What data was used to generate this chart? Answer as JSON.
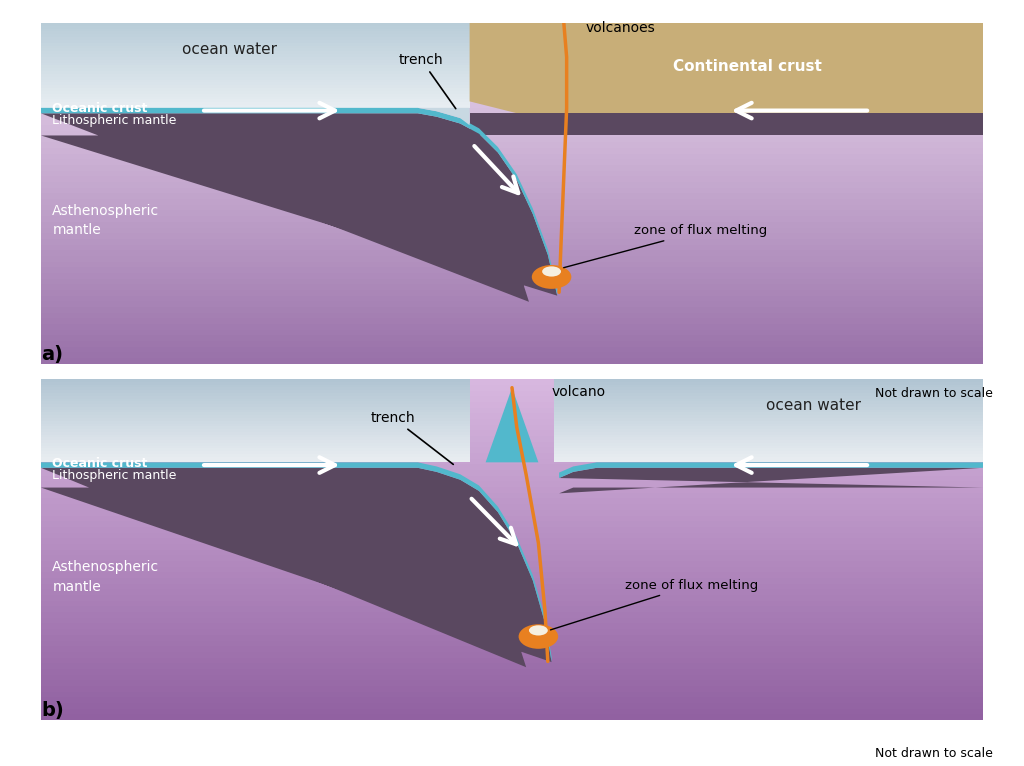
{
  "colors": {
    "oceanic_crust": "#52b8cc",
    "lithospheric_mantle": "#5a4860",
    "asthen_top": "#b090c0",
    "asthen_bot": "#e8d0f0",
    "ocean_top": "#e8f0f4",
    "ocean_bot": "#a8c4d4",
    "continental_crust": "#c8ae78",
    "volcano_line": "#e88020",
    "flux_orange": "#e88020",
    "flux_white": "#f5efe0",
    "white": "#ffffff",
    "black": "#000000",
    "background": "#ffffff"
  },
  "panel_a": {
    "label": "a)",
    "note": "Not drawn to scale",
    "ocean_water": "ocean water",
    "oceanic_crust_lbl": "Oceanic crust",
    "litho_lbl": "Lithospheric mantle",
    "asthen_lbl": "Asthenospheric\nmantle",
    "cont_lbl": "Continental crust",
    "trench_lbl": "trench",
    "volcanoes_lbl": "volcanoes",
    "flux_lbl": "zone of flux melting"
  },
  "panel_b": {
    "label": "b)",
    "note": "Not drawn to scale",
    "ocean_water": "ocean water",
    "oceanic_crust_lbl": "Oceanic crust",
    "litho_lbl": "Lithospheric mantle",
    "asthen_lbl": "Asthenospheric\nmantle",
    "trench_lbl": "trench",
    "volcano_lbl": "volcano",
    "flux_lbl": "zone of flux melting"
  }
}
